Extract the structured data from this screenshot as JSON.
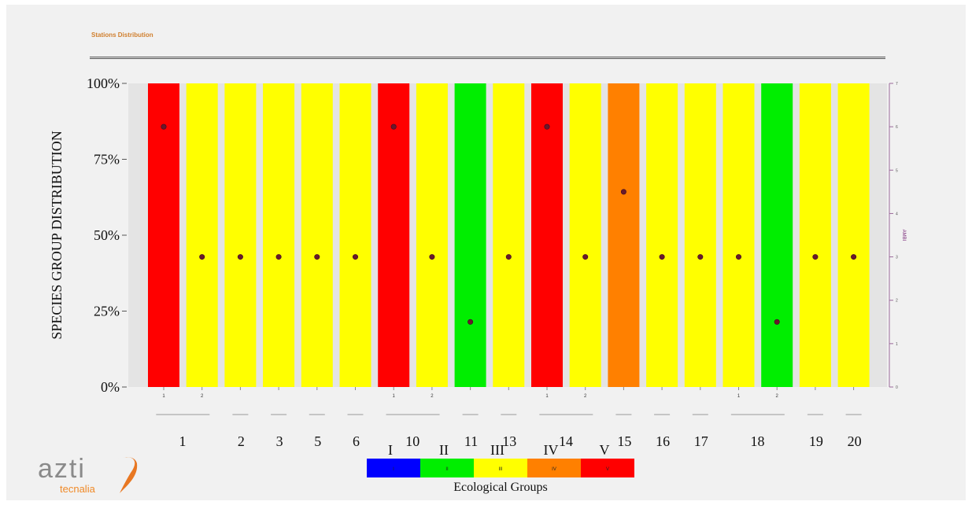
{
  "header": {
    "title": "Stations Distribution"
  },
  "chart_data": {
    "type": "bar",
    "ylabel": "SPECIES GROUP DISTRIBUTION",
    "yticks": [
      "0%",
      "25%",
      "50%",
      "75%",
      "100%"
    ],
    "ylim": [
      0,
      100
    ],
    "y2label": "AMBI",
    "y2ticks": [
      "0",
      "1",
      "2",
      "3",
      "4",
      "5",
      "6",
      "7"
    ],
    "y2lim": [
      0,
      7
    ],
    "colors": {
      "I": "#0000ff",
      "II": "#00ee00",
      "III": "#ffff00",
      "IV": "#ff8000",
      "V": "#ff0000",
      "marker": "#6a1a2a",
      "axis2": "#9a6a9a"
    },
    "bars": [
      {
        "station": "1",
        "replicate": "1",
        "group": "V",
        "value": 100,
        "ambi": 6
      },
      {
        "station": "1",
        "replicate": "2",
        "group": "III",
        "value": 100,
        "ambi": 3
      },
      {
        "station": "2",
        "replicate": "",
        "group": "III",
        "value": 100,
        "ambi": 3
      },
      {
        "station": "3",
        "replicate": "",
        "group": "III",
        "value": 100,
        "ambi": 3
      },
      {
        "station": "5",
        "replicate": "",
        "group": "III",
        "value": 100,
        "ambi": 3
      },
      {
        "station": "6",
        "replicate": "",
        "group": "III",
        "value": 100,
        "ambi": 3
      },
      {
        "station": "10",
        "replicate": "1",
        "group": "V",
        "value": 100,
        "ambi": 6
      },
      {
        "station": "10",
        "replicate": "2",
        "group": "III",
        "value": 100,
        "ambi": 3
      },
      {
        "station": "11",
        "replicate": "",
        "group": "II",
        "value": 100,
        "ambi": 1.5
      },
      {
        "station": "13",
        "replicate": "",
        "group": "III",
        "value": 100,
        "ambi": 3
      },
      {
        "station": "14",
        "replicate": "1",
        "group": "V",
        "value": 100,
        "ambi": 6
      },
      {
        "station": "14",
        "replicate": "2",
        "group": "III",
        "value": 100,
        "ambi": 3
      },
      {
        "station": "15",
        "replicate": "",
        "group": "IV",
        "value": 100,
        "ambi": 4.5
      },
      {
        "station": "16",
        "replicate": "",
        "group": "III",
        "value": 100,
        "ambi": 3
      },
      {
        "station": "17",
        "replicate": "",
        "group": "III",
        "value": 100,
        "ambi": 3
      },
      {
        "station": "18",
        "replicate": "1",
        "group": "III",
        "value": 100,
        "ambi": 3
      },
      {
        "station": "18",
        "replicate": "2",
        "group": "II",
        "value": 100,
        "ambi": 1.5
      },
      {
        "station": "19",
        "replicate": "",
        "group": "III",
        "value": 100,
        "ambi": 3
      },
      {
        "station": "20",
        "replicate": "",
        "group": "III",
        "value": 100,
        "ambi": 3
      }
    ],
    "stations": [
      "1",
      "2",
      "3",
      "5",
      "6",
      "10",
      "11",
      "13",
      "14",
      "15",
      "16",
      "17",
      "18",
      "19",
      "20"
    ],
    "legend": {
      "title": "Ecological Groups",
      "items": [
        {
          "group": "I",
          "label": "I",
          "swatch_label": "I"
        },
        {
          "group": "II",
          "label": "II",
          "swatch_label": "II"
        },
        {
          "group": "III",
          "label": "III",
          "swatch_label": "III"
        },
        {
          "group": "IV",
          "label": "IV",
          "swatch_label": "IV"
        },
        {
          "group": "V",
          "label": "V",
          "swatch_label": "V"
        }
      ]
    }
  },
  "logo": {
    "text": "azti",
    "subtext": "tecnalia",
    "colors": {
      "azti": "#8a8a8a",
      "tecnalia": "#f08a28",
      "swoosh": "#e87722"
    }
  }
}
